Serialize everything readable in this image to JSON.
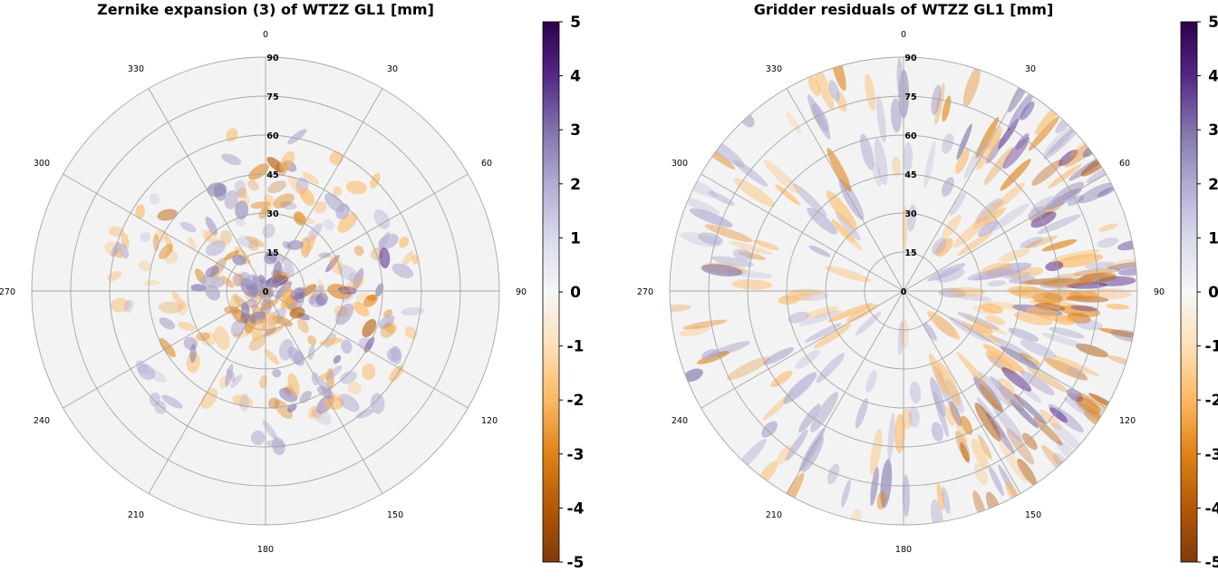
{
  "chart_data": [
    {
      "type": "heatmap",
      "projection": "polar",
      "title": "Zernike expansion (3) of WTZZ GL1 [mm]",
      "angle_ticks": [
        "0",
        "30",
        "60",
        "90",
        "120",
        "150",
        "180",
        "210",
        "240",
        "270",
        "300",
        "330"
      ],
      "radial_ticks": [
        "0",
        "15",
        "30",
        "45",
        "60",
        "75",
        "90"
      ],
      "rlim": [
        0,
        90
      ],
      "colorbar": {
        "ticks": [
          "5",
          "4",
          "3",
          "2",
          "1",
          "0",
          "-1",
          "-2",
          "-3",
          "-4",
          "-5"
        ],
        "range": [
          -5,
          5
        ],
        "colormap": "PuOr"
      },
      "grid": true,
      "description_of_field": "small-amplitude residual ripples, mostly within radius 45"
    },
    {
      "type": "heatmap",
      "projection": "polar",
      "title": "Gridder residuals of WTZZ GL1 [mm]",
      "angle_ticks": [
        "0",
        "30",
        "60",
        "90",
        "120",
        "150",
        "180",
        "210",
        "240",
        "270",
        "300",
        "330"
      ],
      "radial_ticks": [
        "0",
        "15",
        "30",
        "45",
        "60",
        "75",
        "90"
      ],
      "rlim": [
        0,
        90
      ],
      "colorbar": {
        "ticks": [
          "5",
          "4",
          "3",
          "2",
          "1",
          "0",
          "-1",
          "-2",
          "-3",
          "-4",
          "-5"
        ],
        "range": [
          -5,
          5
        ],
        "colormap": "PuOr"
      },
      "grid": true,
      "description_of_field": "arc-shaped residual stripes, strongest on the east side between radius 60 and 90"
    }
  ],
  "colors": {
    "background_disk": "#f3f3f3",
    "grid": "#a6a6a6",
    "colormap_min": "#7f3b08",
    "colormap_mid": "#f7f7f7",
    "colormap_max": "#2d004b"
  }
}
